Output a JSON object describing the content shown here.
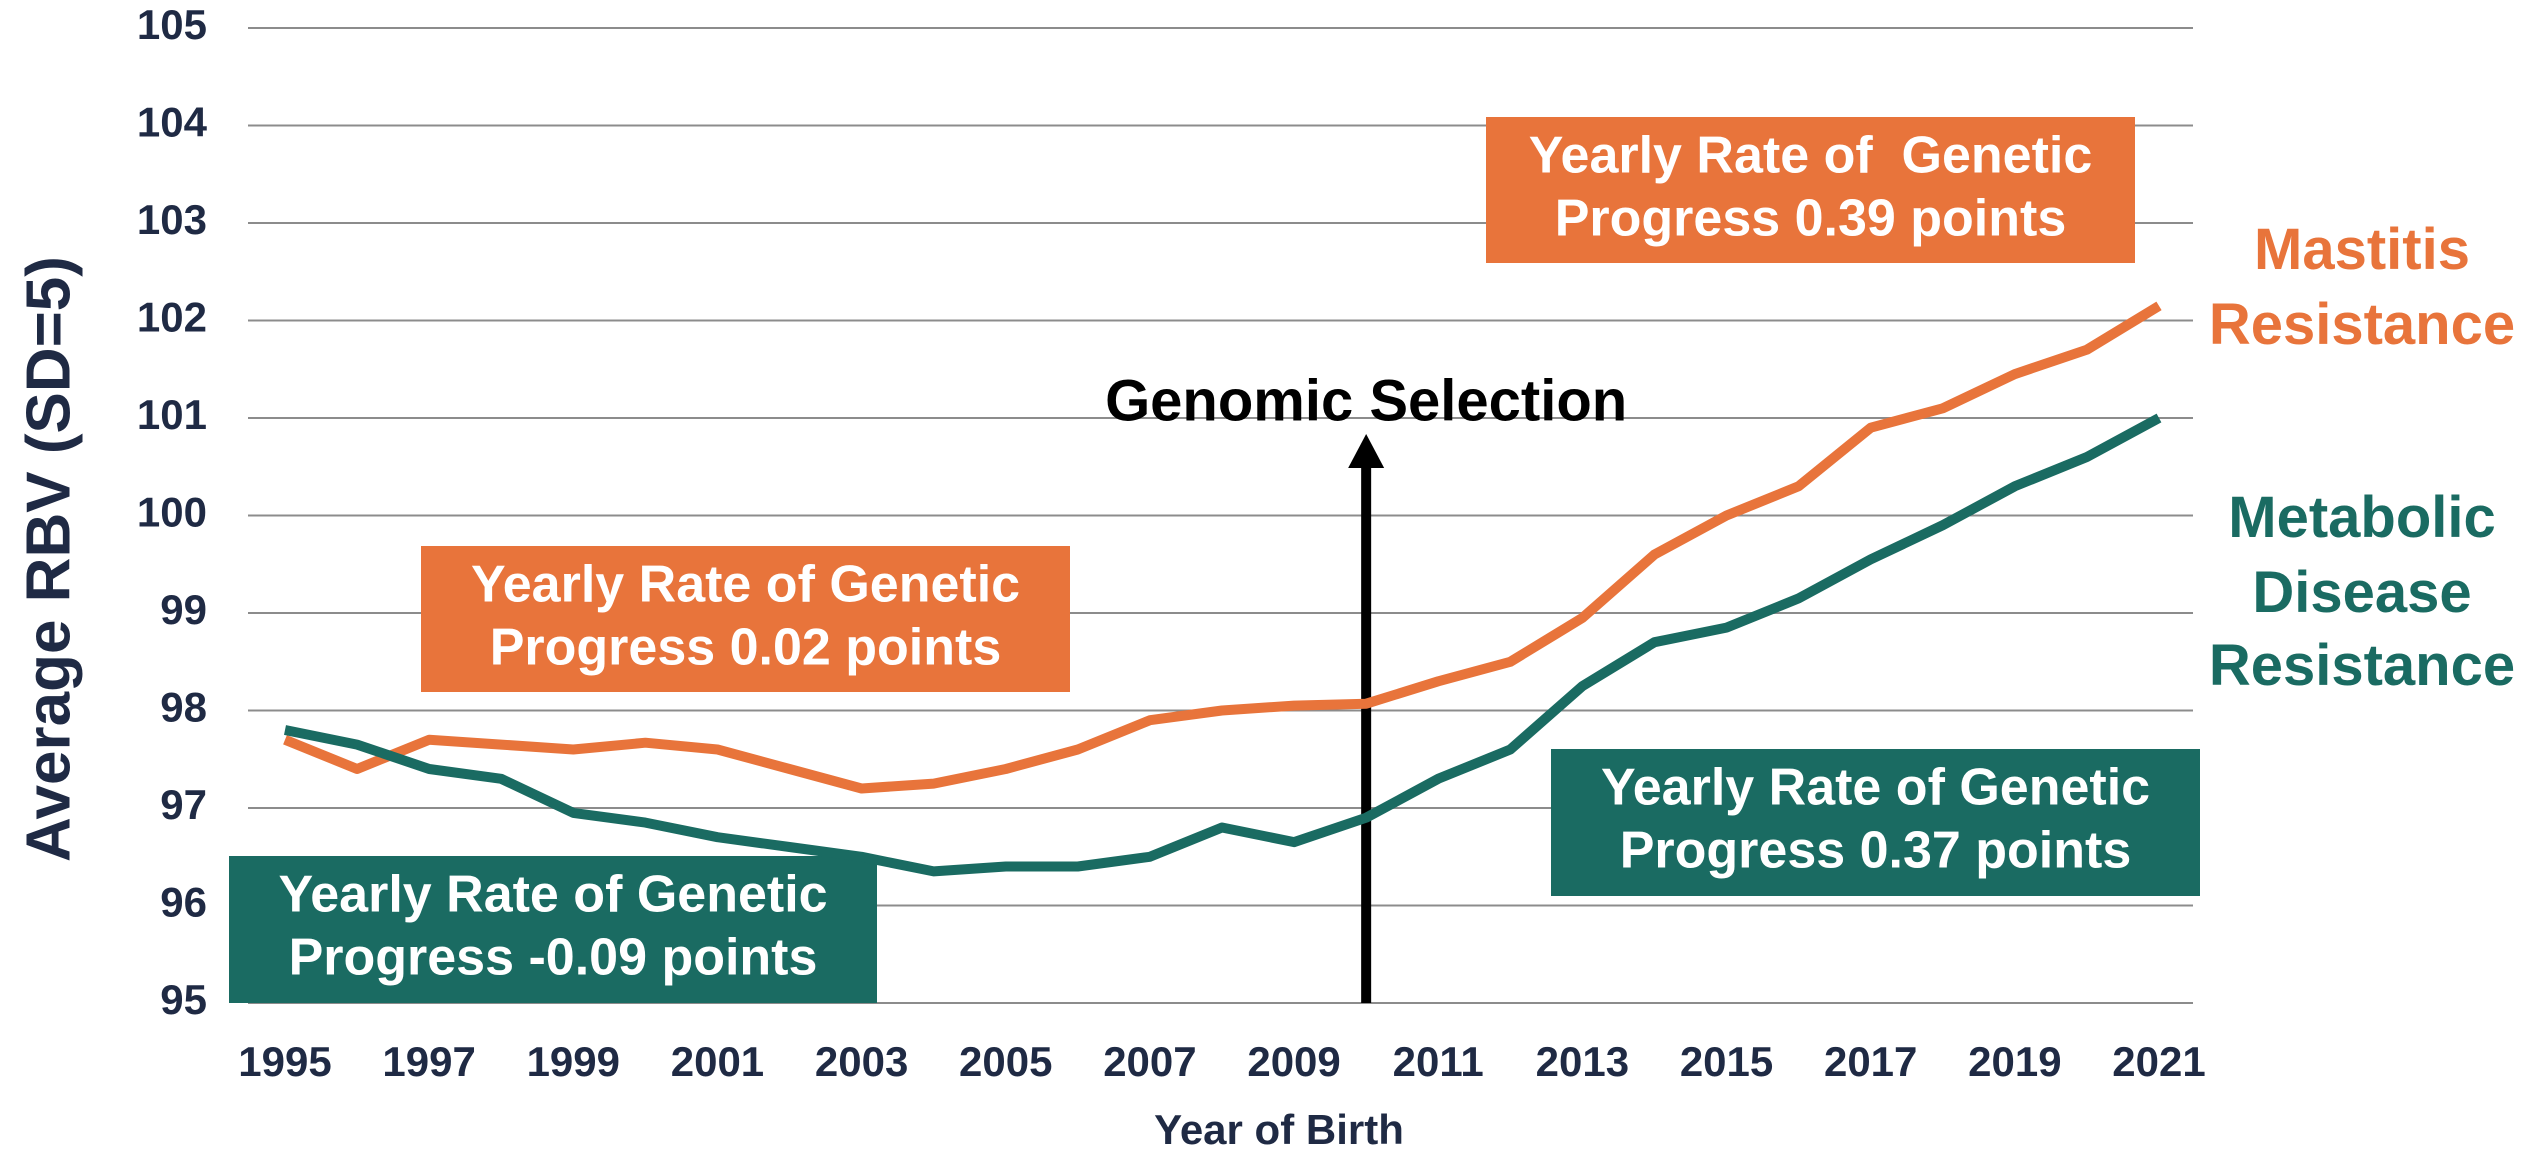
{
  "chart_data": {
    "type": "line",
    "y_label": "Average RBV (SD=5)",
    "x_label": "Year of Birth",
    "x": [
      1995,
      1996,
      1997,
      1998,
      1999,
      2000,
      2001,
      2002,
      2003,
      2004,
      2005,
      2006,
      2007,
      2008,
      2009,
      2010,
      2011,
      2012,
      2013,
      2014,
      2015,
      2016,
      2017,
      2018,
      2019,
      2020,
      2021
    ],
    "xlim": [
      1995,
      2021
    ],
    "xticks": [
      1995,
      1997,
      1999,
      2001,
      2003,
      2005,
      2007,
      2009,
      2011,
      2013,
      2015,
      2017,
      2019,
      2021
    ],
    "ylim": [
      95,
      105
    ],
    "yticks": [
      95,
      96,
      97,
      98,
      99,
      100,
      101,
      102,
      103,
      104,
      105
    ],
    "grid": true,
    "series": [
      {
        "name": "Mastitis Resistance",
        "color": "#e8743b",
        "values": [
          97.7,
          97.4,
          97.7,
          97.65,
          97.6,
          97.67,
          97.6,
          97.4,
          97.2,
          97.25,
          97.4,
          97.6,
          97.9,
          98.0,
          98.05,
          98.07,
          98.3,
          98.5,
          98.95,
          99.6,
          100.0,
          100.3,
          100.9,
          101.1,
          101.45,
          101.7,
          102.15
        ]
      },
      {
        "name": "Metabolic Disease Resistance",
        "color": "#1a6b62",
        "values": [
          97.8,
          97.65,
          97.4,
          97.3,
          96.95,
          96.85,
          96.7,
          96.6,
          96.5,
          96.35,
          96.4,
          96.4,
          96.5,
          96.8,
          96.65,
          96.9,
          97.3,
          97.6,
          98.25,
          98.7,
          98.85,
          99.15,
          99.55,
          99.9,
          100.3,
          100.6,
          101.0
        ]
      }
    ],
    "annotations": [
      {
        "lines": [
          "Yearly Rate of  Genetic",
          "Progress 0.39 points"
        ],
        "color": "#e8743b"
      },
      {
        "lines": [
          "Yearly Rate of Genetic",
          "Progress 0.02 points"
        ],
        "color": "#e8743b"
      },
      {
        "lines": [
          "Yearly Rate of Genetic",
          "Progress 0.37 points"
        ],
        "color": "#1a6b62"
      },
      {
        "lines": [
          "Yearly Rate of Genetic",
          "Progress -0.09 points"
        ],
        "color": "#1a6b62"
      }
    ],
    "event": {
      "label": "Genomic Selection",
      "x": 2010
    }
  }
}
